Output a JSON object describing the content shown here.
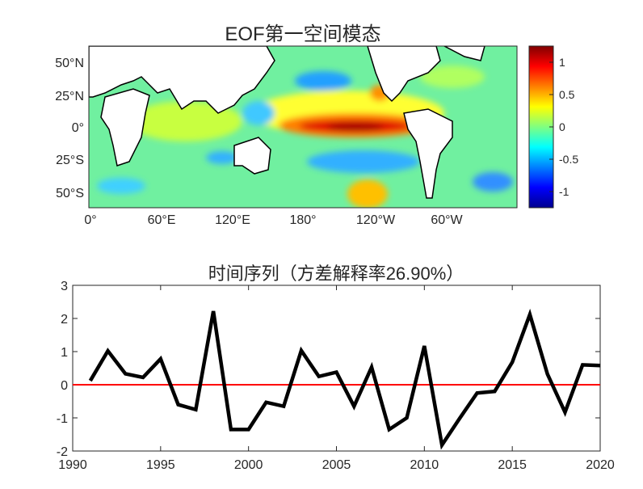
{
  "map_panel": {
    "title": "EOF第一空间模态",
    "lat_ticks": [
      "50°N",
      "25°N",
      "0°",
      "25°S",
      "50°S"
    ],
    "lon_ticks": [
      "0°",
      "60°E",
      "120°E",
      "180°",
      "120°W",
      "60°W"
    ],
    "colorbar": {
      "colormap": "jet",
      "range": [
        -1.25,
        1.25
      ],
      "ticks": [
        1,
        0.5,
        0,
        -0.5,
        -1
      ],
      "tick_labels": [
        "1",
        "0.5",
        "0",
        "-0.5",
        "-1"
      ]
    }
  },
  "chart_data": [
    {
      "type": "line",
      "title": "时间序列（方差解释率26.90%）",
      "xlabel": "",
      "ylabel": "",
      "xlim": [
        1990,
        2020
      ],
      "ylim": [
        -2,
        3
      ],
      "xticks": [
        1990,
        1995,
        2000,
        2005,
        2010,
        2015,
        2020
      ],
      "yticks": [
        -2,
        -1,
        0,
        1,
        2,
        3
      ],
      "grid": false,
      "x": [
        1991,
        1992,
        1993,
        1994,
        1995,
        1996,
        1997,
        1998,
        1999,
        2000,
        2001,
        2002,
        2003,
        2004,
        2005,
        2006,
        2007,
        2008,
        2009,
        2010,
        2011,
        2012,
        2013,
        2014,
        2015,
        2016,
        2017,
        2018,
        2019,
        2020
      ],
      "series": [
        {
          "values": [
            0.12,
            1.02,
            0.33,
            0.22,
            0.78,
            -0.6,
            -0.75,
            2.22,
            -1.35,
            -1.35,
            -0.53,
            -0.65,
            1.03,
            0.25,
            0.38,
            -0.65,
            0.53,
            -1.35,
            -1.0,
            1.17,
            -1.82,
            -1.02,
            -0.25,
            -0.2,
            0.68,
            2.12,
            0.32,
            -0.83,
            0.6,
            0.58
          ],
          "color": "#000000"
        }
      ],
      "reference_line": {
        "y": 0,
        "color": "#ff0000"
      }
    }
  ]
}
